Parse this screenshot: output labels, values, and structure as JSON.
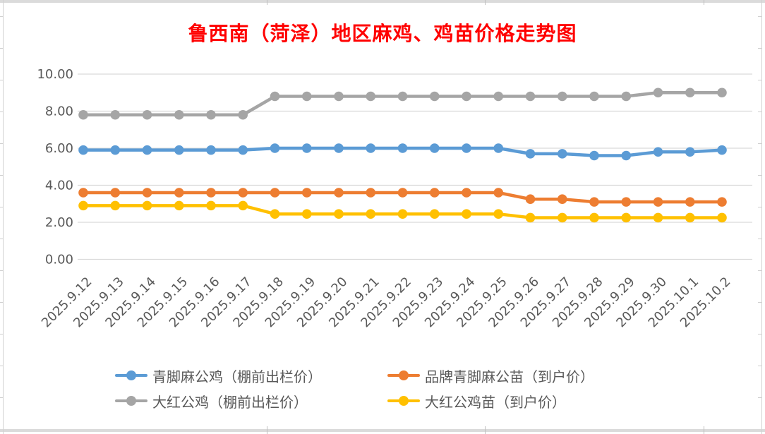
{
  "title": "鲁西南（菏泽）地区麻鸡、鸡苗价格走势图",
  "title_color": "#ff0000",
  "axis_text_color": "#595959",
  "gridline_color": "#d9d9d9",
  "chart_data": {
    "type": "line",
    "title": "鲁西南（菏泽）地区麻鸡、鸡苗价格走势图",
    "xlabel": "",
    "ylabel": "",
    "ylim": [
      0,
      10
    ],
    "ytick_step": 2,
    "ytick_labels": [
      "0.00",
      "2.00",
      "4.00",
      "6.00",
      "8.00",
      "10.00"
    ],
    "grid": true,
    "legend_position": "bottom",
    "categories": [
      "2025.9.12",
      "2025.9.13",
      "2025.9.14",
      "2025.9.15",
      "2025.9.16",
      "2025.9.17",
      "2025.9.18",
      "2025.9.19",
      "2025.9.20",
      "2025.9.21",
      "2025.9.22",
      "2025.9.23",
      "2025.9.24",
      "2025.9.25",
      "2025.9.26",
      "2025.9.27",
      "2025.9.28",
      "2025.9.29",
      "2025.9.30",
      "2025.10.1",
      "2025.10.2"
    ],
    "series": [
      {
        "name": "青脚麻公鸡（棚前出栏价）",
        "color": "#5b9bd5",
        "values": [
          5.9,
          5.9,
          5.9,
          5.9,
          5.9,
          5.9,
          6.0,
          6.0,
          6.0,
          6.0,
          6.0,
          6.0,
          6.0,
          6.0,
          5.7,
          5.7,
          5.6,
          5.6,
          5.8,
          5.8,
          5.9
        ]
      },
      {
        "name": "品牌青脚麻公苗（到户价）",
        "color": "#ed7d31",
        "values": [
          3.6,
          3.6,
          3.6,
          3.6,
          3.6,
          3.6,
          3.6,
          3.6,
          3.6,
          3.6,
          3.6,
          3.6,
          3.6,
          3.6,
          3.25,
          3.25,
          3.1,
          3.1,
          3.1,
          3.1,
          3.1
        ]
      },
      {
        "name": "大红公鸡（棚前出栏价）",
        "color": "#a5a5a5",
        "values": [
          7.8,
          7.8,
          7.8,
          7.8,
          7.8,
          7.8,
          8.8,
          8.8,
          8.8,
          8.8,
          8.8,
          8.8,
          8.8,
          8.8,
          8.8,
          8.8,
          8.8,
          8.8,
          9.0,
          9.0,
          9.0
        ]
      },
      {
        "name": "大红公鸡苗（到户价）",
        "color": "#ffc000",
        "values": [
          2.9,
          2.9,
          2.9,
          2.9,
          2.9,
          2.9,
          2.45,
          2.45,
          2.45,
          2.45,
          2.45,
          2.45,
          2.45,
          2.45,
          2.25,
          2.25,
          2.25,
          2.25,
          2.25,
          2.25,
          2.25
        ]
      }
    ]
  }
}
